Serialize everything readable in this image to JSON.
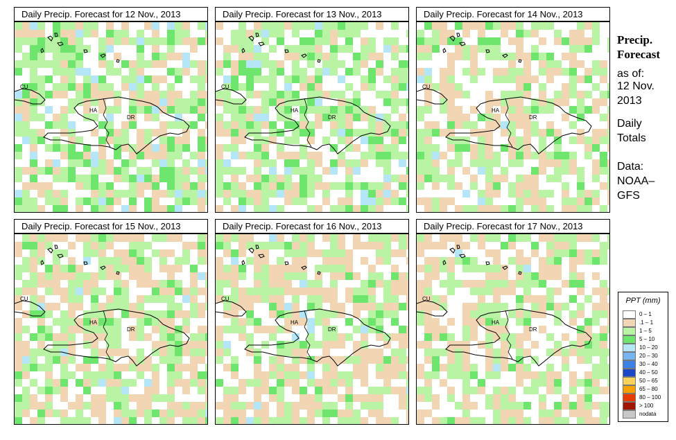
{
  "panels": [
    {
      "title": "Daily Precip. Forecast for  12 Nov., 2013"
    },
    {
      "title": "Daily Precip. Forecast for  13 Nov., 2013"
    },
    {
      "title": "Daily Precip. Forecast for  14 Nov., 2013"
    },
    {
      "title": "Daily Precip. Forecast for  15 Nov., 2013"
    },
    {
      "title": "Daily Precip. Forecast for  16 Nov., 2013"
    },
    {
      "title": "Daily Precip. Forecast for  17 Nov., 2013"
    }
  ],
  "map_labels": {
    "cuba": "CU",
    "haiti": "HA",
    "dominican_republic": "DR"
  },
  "side": {
    "title_line1": "Precip.",
    "title_line2": "Forecast",
    "asof": "as of:",
    "date1": "12 Nov.",
    "date2": "2013",
    "daily1": "Daily",
    "daily2": "Totals",
    "data1": "Data:",
    "data2": "NOAA–",
    "data3": "GFS"
  },
  "legend": {
    "title": "PPT (mm)",
    "items": [
      {
        "label": "0 – 1",
        "color": "#ffffff"
      },
      {
        "label": ".1 – 1",
        "color": "#f2d6b3"
      },
      {
        "label": "1 – 5",
        "color": "#b8f4a4"
      },
      {
        "label": "5 – 10",
        "color": "#6ee66e"
      },
      {
        "label": "10 – 20",
        "color": "#b4e6f8"
      },
      {
        "label": "20 – 30",
        "color": "#78b4f0"
      },
      {
        "label": "30 – 40",
        "color": "#3c82e6"
      },
      {
        "label": "40 – 50",
        "color": "#1e46c8"
      },
      {
        "label": "50 – 65",
        "color": "#f8d25a"
      },
      {
        "label": "65 – 80",
        "color": "#f8a000"
      },
      {
        "label": "80 – 100",
        "color": "#e63c00"
      },
      {
        "label": "> 100",
        "color": "#a01400"
      },
      {
        "label": "nodata",
        "color": "#c8c8c8"
      }
    ]
  }
}
